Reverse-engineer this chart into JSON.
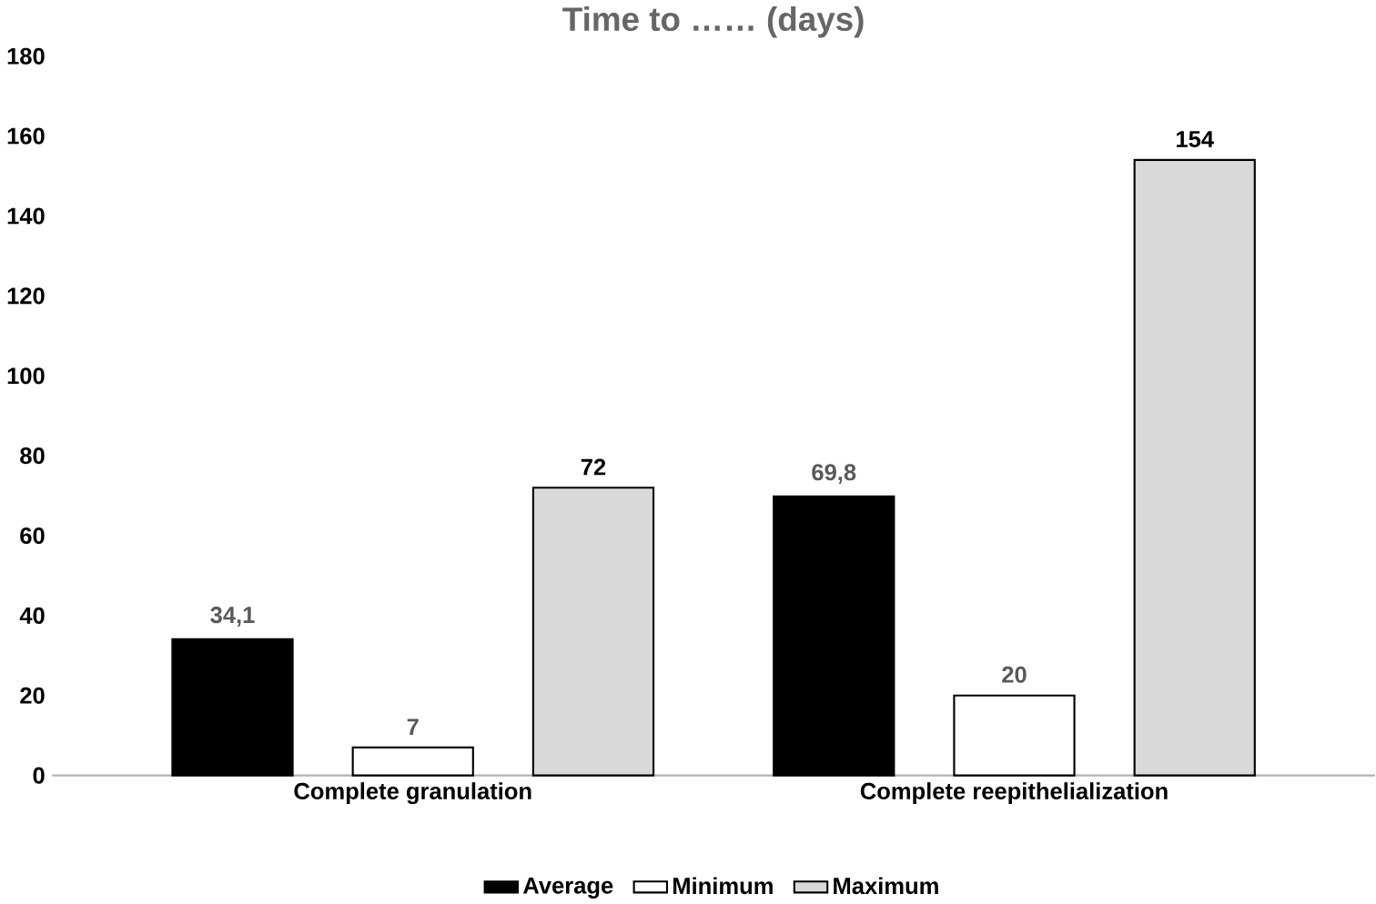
{
  "chart_data": {
    "type": "bar",
    "title": "Time to …… (days)",
    "categories": [
      "Complete granulation",
      "Complete reepithelialization"
    ],
    "series": [
      {
        "name": "Average",
        "color": "#000000",
        "values": [
          34.1,
          69.8
        ],
        "value_labels": [
          "34,1",
          "69,8"
        ]
      },
      {
        "name": "Minimum",
        "color": "#ffffff",
        "values": [
          7,
          20
        ],
        "value_labels": [
          "7",
          "20"
        ]
      },
      {
        "name": "Maximum",
        "color": "#d9d9d9",
        "values": [
          72,
          154
        ],
        "value_labels": [
          "72",
          "154"
        ]
      }
    ],
    "ylim": [
      0,
      180
    ],
    "yticks": [
      0,
      20,
      40,
      60,
      80,
      100,
      120,
      140,
      160,
      180
    ],
    "legend": "bottom"
  }
}
